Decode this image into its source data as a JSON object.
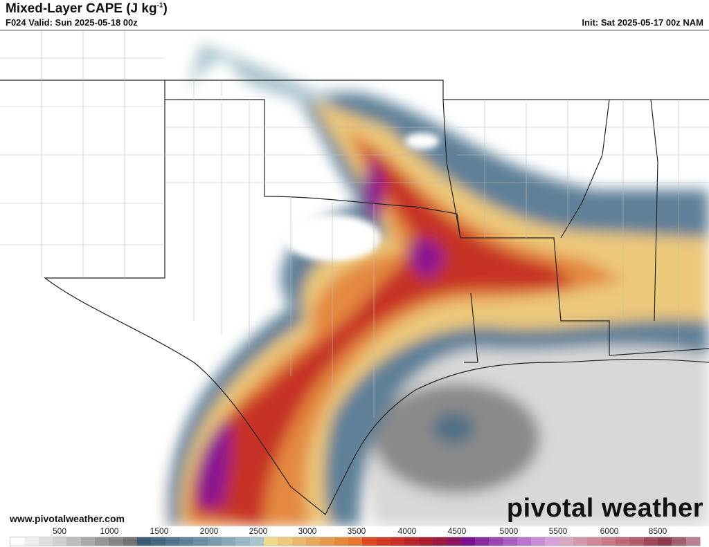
{
  "header": {
    "title": "Mixed-Layer CAPE (J kg",
    "title_sup": "-1",
    "title_end": ")",
    "valid": "F024 Valid: Sun 2025-05-18 00z",
    "init": "Init: Sat 2025-05-17 00z NAM"
  },
  "footer": {
    "website": "www.pivotalweather.com",
    "brand": "pivotal weather",
    "brand_icon": "gear-icon"
  },
  "colorbar": {
    "ticks": [
      "500",
      "1000",
      "1500",
      "2000",
      "2500",
      "3000",
      "3500",
      "4000",
      "4500",
      "5000",
      "5500",
      "6000",
      "8500"
    ],
    "colors": [
      "#ffffff",
      "#eeeeee",
      "#dddddd",
      "#cfcfcf",
      "#bdbdbd",
      "#a9a9a9",
      "#969696",
      "#858585",
      "#737373",
      "#3d5a73",
      "#476780",
      "#53738c",
      "#5f8098",
      "#6c8da3",
      "#7a9aae",
      "#89a8ba",
      "#98b6c4",
      "#a9c4cd",
      "#eed98a",
      "#ecc87a",
      "#eab86a",
      "#e8a85c",
      "#e6984e",
      "#e48840",
      "#e27832",
      "#dd4a1f",
      "#d23b22",
      "#c63026",
      "#b8282b",
      "#aa2030",
      "#9c1a40",
      "#8d1560",
      "#7d1090",
      "#8a2aa0",
      "#9a45b0",
      "#aa5dc0",
      "#ba75cc",
      "#c98ad6",
      "#d6a0d8",
      "#d7a8c0",
      "#d498aa",
      "#cf8898",
      "#c97888",
      "#c06878",
      "#b45a6a",
      "#a04858",
      "#8c3a4c",
      "#a06070",
      "#b88090"
    ]
  },
  "map": {
    "colors": {
      "low_gray": "#a0a0a0",
      "blue_gray": "#5a7c93",
      "yellow": "#ecc87a",
      "orange": "#e48840",
      "red": "#c63026",
      "purple": "#8d1590",
      "ocean_gray": "#8a8a8a",
      "border": "#222222"
    }
  }
}
